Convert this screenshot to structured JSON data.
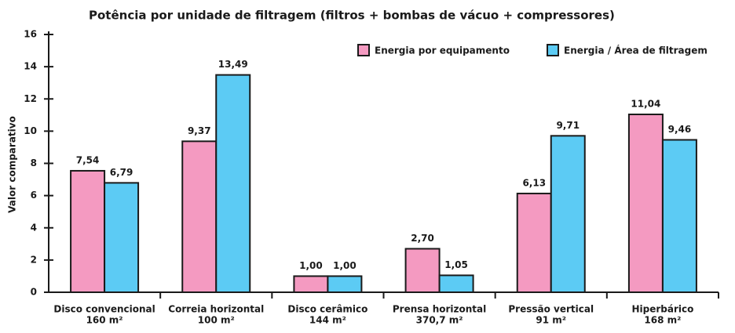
{
  "chart_data": {
    "type": "bar",
    "title": "Potência por unidade de filtragem (filtros + bombas de vácuo + compressores)",
    "y_label": "Valor comparativo",
    "categories": [
      [
        "Disco convencional",
        "160 m²"
      ],
      [
        "Correia horizontal",
        "100 m²"
      ],
      [
        "Disco cerâmico",
        "144 m²"
      ],
      [
        "Prensa horizontal",
        "370,7 m²"
      ],
      [
        "Pressão vertical",
        "91 m²"
      ],
      [
        "Hiperbárico",
        "168 m²"
      ]
    ],
    "series": [
      {
        "name": "Energia por equipamento",
        "color": "#f49ac1",
        "values": [
          7.54,
          9.37,
          1.0,
          2.7,
          6.13,
          11.04
        ],
        "value_labels": [
          "7,54",
          "9,37",
          "1,00",
          "2,70",
          "6,13",
          "11,04"
        ]
      },
      {
        "name": "Energia / Área de filtragem",
        "color": "#5ccbf4",
        "values": [
          6.79,
          13.49,
          1.0,
          1.05,
          9.71,
          9.46
        ],
        "value_labels": [
          "6,79",
          "13,49",
          "1,00",
          "1,05",
          "9,71",
          "9,46"
        ]
      }
    ],
    "ylim": [
      0,
      16
    ],
    "yticks": [
      0,
      2,
      4,
      6,
      8,
      10,
      12,
      14,
      16
    ],
    "legend": "top-right"
  }
}
